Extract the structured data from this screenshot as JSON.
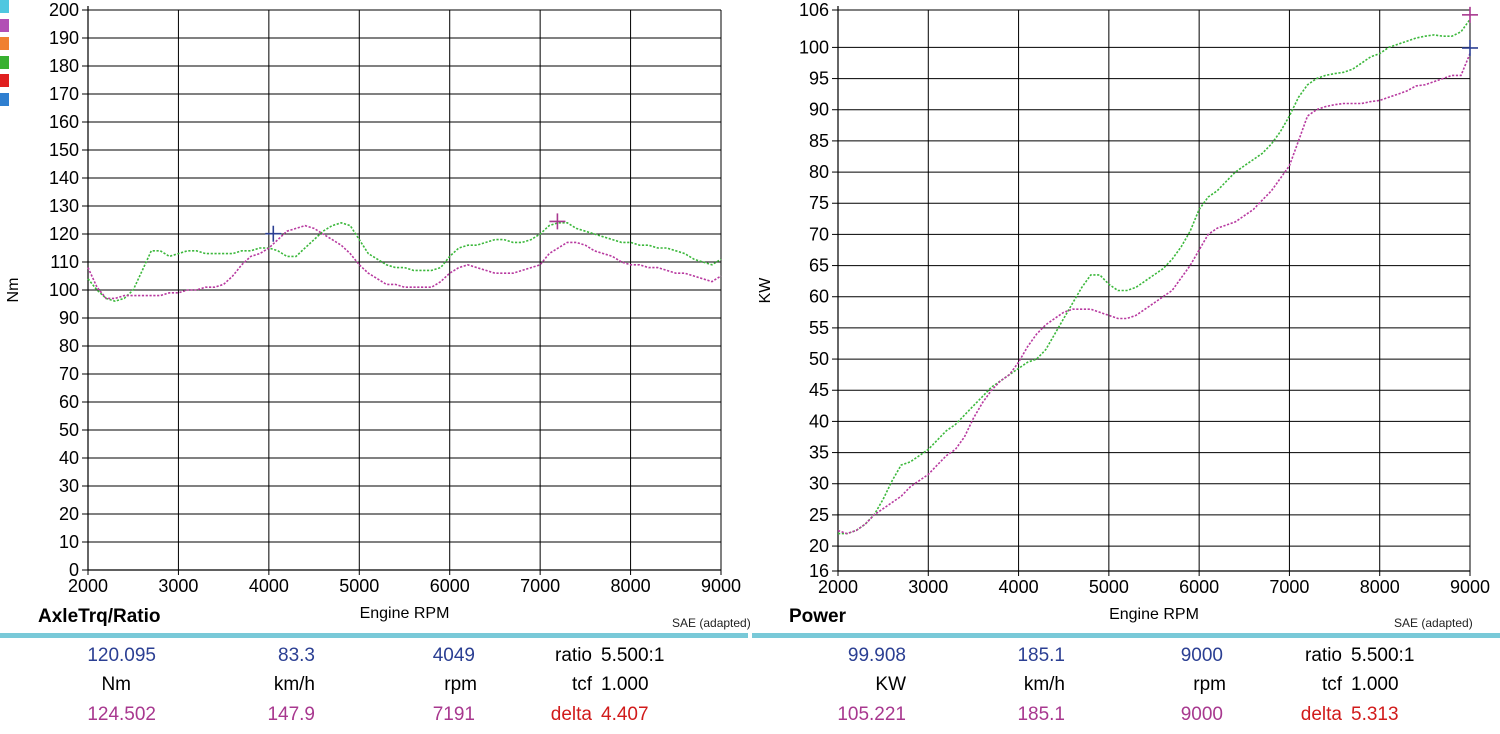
{
  "legend_colors": [
    "#4fc7e0",
    "#b24fb5",
    "#f08030",
    "#38b030",
    "#e02020",
    "#2f7fd0"
  ],
  "chart_data": [
    {
      "type": "line",
      "title": "AxleTrq/Ratio",
      "xlabel": "Engine RPM",
      "ylabel": "Nm",
      "note": "SAE (adapted)",
      "xlim": [
        2000,
        9000
      ],
      "ylim": [
        0,
        200
      ],
      "xticks": [
        2000,
        3000,
        4000,
        5000,
        6000,
        7000,
        8000,
        9000
      ],
      "yticks": [
        0,
        10,
        20,
        30,
        40,
        50,
        60,
        70,
        80,
        90,
        100,
        110,
        120,
        130,
        140,
        150,
        160,
        170,
        180,
        190,
        200
      ],
      "grid": true,
      "series": [
        {
          "color": "#3cb83c",
          "x": [
            2000,
            2100,
            2200,
            2300,
            2400,
            2500,
            2600,
            2700,
            2800,
            2900,
            3000,
            3100,
            3200,
            3300,
            3400,
            3500,
            3600,
            3700,
            3800,
            3900,
            4000,
            4100,
            4200,
            4300,
            4400,
            4500,
            4600,
            4700,
            4800,
            4900,
            5000,
            5100,
            5200,
            5300,
            5400,
            5500,
            5600,
            5700,
            5800,
            5900,
            6000,
            6100,
            6200,
            6300,
            6400,
            6500,
            6600,
            6700,
            6800,
            6900,
            7000,
            7100,
            7200,
            7300,
            7400,
            7500,
            7600,
            7700,
            7800,
            7900,
            8000,
            8100,
            8200,
            8300,
            8400,
            8500,
            8600,
            8700,
            8800,
            8900,
            9000
          ],
          "values": [
            104,
            100,
            97,
            96,
            97,
            100,
            107,
            114,
            114,
            112,
            113,
            114,
            114,
            113,
            113,
            113,
            113,
            114,
            114,
            115,
            115,
            114,
            112,
            112,
            115,
            118,
            121,
            123,
            124,
            123,
            118,
            113,
            111,
            109,
            108,
            108,
            107,
            107,
            107,
            108,
            112,
            115,
            116,
            116,
            117,
            118,
            118,
            117,
            117,
            118,
            120,
            123,
            124,
            124,
            122,
            121,
            120,
            119,
            118,
            117,
            117,
            116,
            116,
            115,
            115,
            114,
            113,
            111,
            110,
            109,
            111
          ]
        },
        {
          "color": "#b83aa0",
          "x": [
            2000,
            2100,
            2200,
            2300,
            2400,
            2500,
            2600,
            2700,
            2800,
            2900,
            3000,
            3100,
            3200,
            3300,
            3400,
            3500,
            3600,
            3700,
            3800,
            3900,
            4000,
            4100,
            4200,
            4300,
            4400,
            4500,
            4600,
            4700,
            4800,
            4900,
            5000,
            5100,
            5200,
            5300,
            5400,
            5500,
            5600,
            5700,
            5800,
            5900,
            6000,
            6100,
            6200,
            6300,
            6400,
            6500,
            6600,
            6700,
            6800,
            6900,
            7000,
            7100,
            7200,
            7300,
            7400,
            7500,
            7600,
            7700,
            7800,
            7900,
            8000,
            8100,
            8200,
            8300,
            8400,
            8500,
            8600,
            8700,
            8800,
            8900,
            9000
          ],
          "values": [
            108,
            101,
            97,
            97,
            98,
            98,
            98,
            98,
            98,
            99,
            99,
            100,
            100,
            101,
            101,
            102,
            105,
            109,
            112,
            113,
            115,
            118,
            121,
            122,
            123,
            122,
            120,
            118,
            116,
            113,
            109,
            106,
            104,
            102,
            102,
            101,
            101,
            101,
            101,
            103,
            106,
            108,
            109,
            108,
            107,
            106,
            106,
            106,
            107,
            108,
            109,
            113,
            115,
            117,
            117,
            116,
            114,
            113,
            112,
            110,
            109,
            109,
            108,
            108,
            107,
            106,
            106,
            105,
            104,
            103,
            105
          ]
        }
      ],
      "markers": [
        {
          "x": 4049,
          "y": 120.095,
          "color": "#2b3f93"
        },
        {
          "x": 7191,
          "y": 124.502,
          "color": "#a8388f"
        }
      ]
    },
    {
      "type": "line",
      "title": "Power",
      "xlabel": "Engine RPM",
      "ylabel": "KW",
      "note": "SAE (adapted)",
      "xlim": [
        2000,
        9000
      ],
      "ylim": [
        16,
        106
      ],
      "xticks": [
        2000,
        3000,
        4000,
        5000,
        6000,
        7000,
        8000,
        9000
      ],
      "yticks": [
        16,
        20,
        25,
        30,
        35,
        40,
        45,
        50,
        55,
        60,
        65,
        70,
        75,
        80,
        85,
        90,
        95,
        100,
        106
      ],
      "grid": true,
      "series": [
        {
          "color": "#3cb83c",
          "x": [
            2000,
            2100,
            2200,
            2300,
            2400,
            2500,
            2600,
            2700,
            2800,
            2900,
            3000,
            3100,
            3200,
            3300,
            3400,
            3500,
            3600,
            3700,
            3800,
            3900,
            4000,
            4100,
            4200,
            4300,
            4400,
            4500,
            4600,
            4700,
            4800,
            4900,
            5000,
            5100,
            5200,
            5300,
            5400,
            5500,
            5600,
            5700,
            5800,
            5900,
            6000,
            6100,
            6200,
            6300,
            6400,
            6500,
            6600,
            6700,
            6800,
            6900,
            7000,
            7100,
            7200,
            7300,
            7400,
            7500,
            7600,
            7700,
            7800,
            7900,
            8000,
            8100,
            8200,
            8300,
            8400,
            8500,
            8600,
            8700,
            8800,
            8900,
            9000
          ],
          "values": [
            22,
            22,
            22.5,
            23.5,
            25,
            27.5,
            30.5,
            33,
            33.5,
            34.5,
            35.5,
            37,
            38.5,
            39.5,
            41,
            42.5,
            44,
            45.5,
            46.5,
            47.5,
            48.5,
            49.5,
            50,
            51.5,
            54,
            56.5,
            59,
            61.5,
            63.5,
            63.5,
            62,
            61,
            61,
            61.5,
            62.5,
            63.5,
            64.5,
            66,
            68,
            70.5,
            74,
            76,
            77,
            78.5,
            80,
            81,
            82,
            83,
            84.5,
            86.5,
            89,
            92,
            94,
            95,
            95.5,
            95.8,
            96,
            96.5,
            97.5,
            98.5,
            99,
            100,
            100.5,
            101,
            101.5,
            101.8,
            102,
            101.8,
            101.8,
            102.5,
            104.5
          ]
        },
        {
          "color": "#b83aa0",
          "x": [
            2000,
            2100,
            2200,
            2300,
            2400,
            2500,
            2600,
            2700,
            2800,
            2900,
            3000,
            3100,
            3200,
            3300,
            3400,
            3500,
            3600,
            3700,
            3800,
            3900,
            4000,
            4100,
            4200,
            4300,
            4400,
            4500,
            4600,
            4700,
            4800,
            4900,
            5000,
            5100,
            5200,
            5300,
            5400,
            5500,
            5600,
            5700,
            5800,
            5900,
            6000,
            6100,
            6200,
            6300,
            6400,
            6500,
            6600,
            6700,
            6800,
            6900,
            7000,
            7100,
            7200,
            7300,
            7400,
            7500,
            7600,
            7700,
            7800,
            7900,
            8000,
            8100,
            8200,
            8300,
            8400,
            8500,
            8600,
            8700,
            8800,
            8900,
            9000
          ],
          "values": [
            22.5,
            22,
            22.5,
            23.5,
            25,
            26,
            27,
            28,
            29.5,
            30.5,
            31.5,
            33,
            34.5,
            35.5,
            37.5,
            40.5,
            43,
            45,
            46.5,
            47.5,
            49.5,
            52,
            54,
            55.5,
            56.5,
            57.5,
            58,
            58,
            58,
            57.5,
            57,
            56.5,
            56.5,
            57,
            58,
            59,
            60,
            61,
            63,
            65,
            67.5,
            70,
            71,
            71.5,
            72,
            73,
            74,
            75.5,
            77,
            79,
            81,
            85,
            89,
            90,
            90.5,
            90.8,
            91,
            91,
            91,
            91.3,
            91.5,
            92,
            92.5,
            93,
            93.8,
            94,
            94.5,
            95,
            95.5,
            95.5,
            99
          ]
        }
      ],
      "markers": [
        {
          "x": 9000,
          "y": 99.908,
          "color": "#2b3f93"
        },
        {
          "x": 9000,
          "y": 105.221,
          "color": "#a8388f"
        }
      ]
    }
  ],
  "left_panel": {
    "title": "AxleTrq/Ratio",
    "xlabel": "Engine RPM",
    "ylabel": "Nm",
    "note": "SAE (adapted)",
    "row1": {
      "v1": "120.095",
      "v2": "83.3",
      "v3": "4049",
      "label": "ratio",
      "value": "5.500:1"
    },
    "row2": {
      "v1": "Nm",
      "v2": "km/h",
      "v3": "rpm",
      "label": "tcf",
      "value": "1.000"
    },
    "row3": {
      "v1": "124.502",
      "v2": "147.9",
      "v3": "7191",
      "label": "delta",
      "value": "4.407"
    }
  },
  "right_panel": {
    "title": "Power",
    "xlabel": "Engine RPM",
    "ylabel": "KW",
    "note": "SAE (adapted)",
    "row1": {
      "v1": "99.908",
      "v2": "185.1",
      "v3": "9000",
      "label": "ratio",
      "value": "5.500:1"
    },
    "row2": {
      "v1": "KW",
      "v2": "km/h",
      "v3": "rpm",
      "label": "tcf",
      "value": "1.000"
    },
    "row3": {
      "v1": "105.221",
      "v2": "185.1",
      "v3": "9000",
      "label": "delta",
      "value": "5.313"
    }
  }
}
